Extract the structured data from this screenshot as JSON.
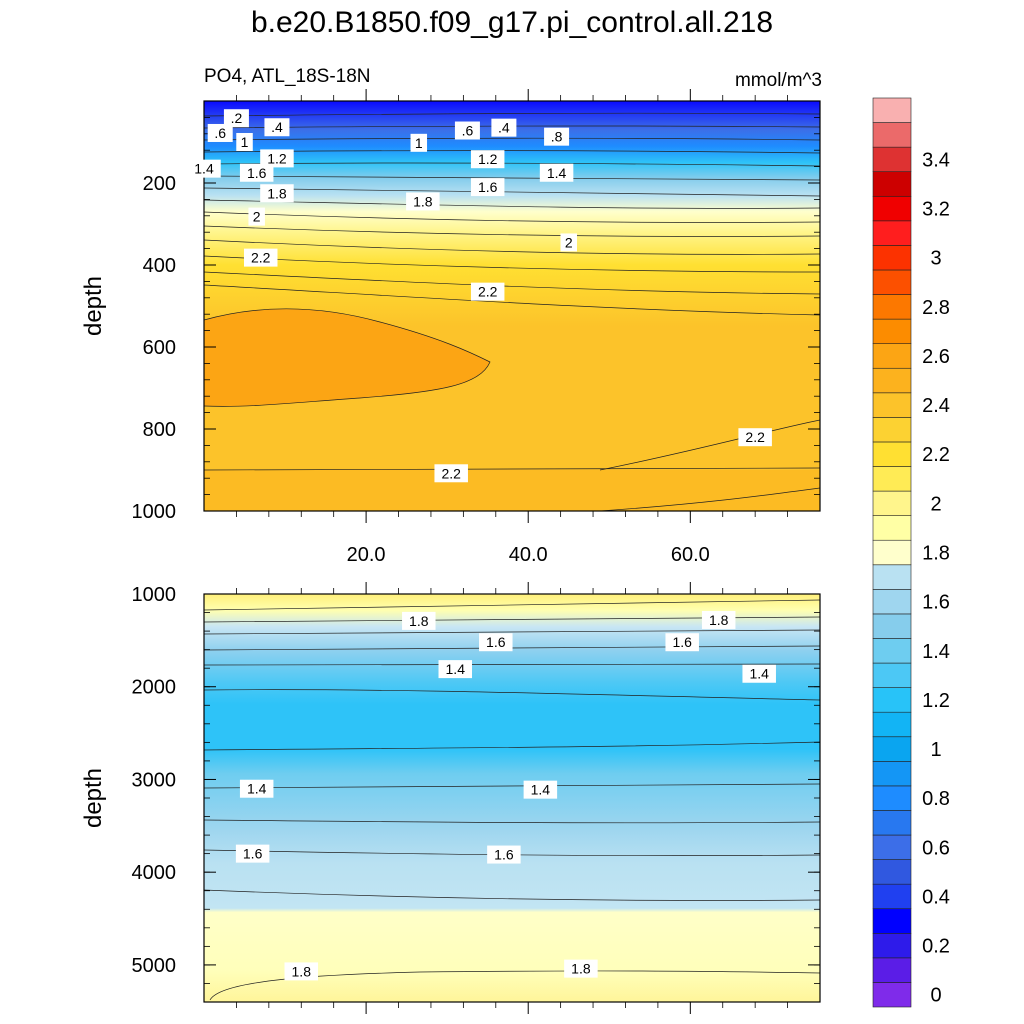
{
  "title": "b.e20.B1850.f09_g17.pi_control.all.218",
  "chart_data": [
    {
      "type": "contour",
      "panel": "upper",
      "variable_label": "PO4, ATL_18S-18N",
      "units_label": "mmol/m^3",
      "ylabel": "depth",
      "xlim": [
        0,
        76
      ],
      "ylim": [
        1000,
        0
      ],
      "xticks": [
        20,
        40,
        60
      ],
      "xtick_labels": [
        "20.0",
        "40.0",
        "60.0"
      ],
      "yticks": [
        200,
        400,
        600,
        800,
        1000
      ],
      "ytick_labels": [
        "200",
        "400",
        "600",
        "800",
        "1000"
      ],
      "contour_labels": [
        {
          "text": ".2",
          "x": 4.0,
          "y": 42
        },
        {
          "text": ".6",
          "x": 2.0,
          "y": 78
        },
        {
          "text": ".4",
          "x": 9.0,
          "y": 64
        },
        {
          "text": ".6",
          "x": 32.5,
          "y": 72
        },
        {
          "text": ".4",
          "x": 37.0,
          "y": 65
        },
        {
          "text": "1",
          "x": 5.0,
          "y": 100
        },
        {
          "text": "1",
          "x": 26.5,
          "y": 102
        },
        {
          "text": ".8",
          "x": 43.5,
          "y": 87
        },
        {
          "text": "1.4",
          "x": 0.0,
          "y": 165
        },
        {
          "text": "1.2",
          "x": 9.0,
          "y": 140
        },
        {
          "text": "1.2",
          "x": 35.0,
          "y": 142
        },
        {
          "text": "1.4",
          "x": 43.5,
          "y": 175
        },
        {
          "text": "1.6",
          "x": 6.5,
          "y": 175
        },
        {
          "text": "1.6",
          "x": 35.0,
          "y": 210
        },
        {
          "text": "1.8",
          "x": 9.0,
          "y": 225
        },
        {
          "text": "1.8",
          "x": 27.0,
          "y": 245
        },
        {
          "text": "2",
          "x": 6.5,
          "y": 282
        },
        {
          "text": "2",
          "x": 45.0,
          "y": 345
        },
        {
          "text": "2.2",
          "x": 7.0,
          "y": 382
        },
        {
          "text": "2.2",
          "x": 35.0,
          "y": 465
        },
        {
          "text": "2.2",
          "x": 68.0,
          "y": 820
        },
        {
          "text": "2.2",
          "x": 30.5,
          "y": 908
        }
      ]
    },
    {
      "type": "contour",
      "panel": "lower",
      "ylabel": "depth",
      "xlim": [
        0,
        76
      ],
      "ylim": [
        5400,
        1000
      ],
      "yticks": [
        1000,
        2000,
        3000,
        4000,
        5000
      ],
      "ytick_labels": [
        "1000",
        "2000",
        "3000",
        "4000",
        "5000"
      ],
      "contour_labels": [
        {
          "text": "1.8",
          "x": 26.5,
          "y": 1290
        },
        {
          "text": "1.8",
          "x": 63.5,
          "y": 1280
        },
        {
          "text": "1.6",
          "x": 36.0,
          "y": 1520
        },
        {
          "text": "1.6",
          "x": 59.0,
          "y": 1520
        },
        {
          "text": "1.4",
          "x": 31.0,
          "y": 1810
        },
        {
          "text": "1.4",
          "x": 68.5,
          "y": 1860
        },
        {
          "text": "1.4",
          "x": 6.5,
          "y": 3100
        },
        {
          "text": "1.4",
          "x": 41.5,
          "y": 3110
        },
        {
          "text": "1.6",
          "x": 6.0,
          "y": 3800
        },
        {
          "text": "1.6",
          "x": 37.0,
          "y": 3810
        },
        {
          "text": "1.8",
          "x": 12.0,
          "y": 5070
        },
        {
          "text": "1.8",
          "x": 46.5,
          "y": 5040
        }
      ]
    }
  ],
  "colorbar": {
    "labels": [
      "0",
      "0.2",
      "0.4",
      "0.6",
      "0.8",
      "1",
      "1.2",
      "1.4",
      "1.6",
      "1.8",
      "2",
      "2.2",
      "2.4",
      "2.6",
      "2.8",
      "3",
      "3.2",
      "3.4"
    ],
    "colors": [
      "#7f2bea",
      "#5b1de7",
      "#2e1bea",
      "#0000ff",
      "#2040f0",
      "#3058e0",
      "#3c6ee8",
      "#2878f0",
      "#1e8cff",
      "#1496f5",
      "#0aa5f0",
      "#12b4f5",
      "#28c3f8",
      "#4cc8f5",
      "#6ecdf0",
      "#86cdec",
      "#9fd6ef",
      "#b9e1f2",
      "#ffffcc",
      "#ffffa5",
      "#fff58c",
      "#ffeb55",
      "#ffe032",
      "#fcd232",
      "#fcc32a",
      "#fcb21e",
      "#fca514",
      "#fc8c00",
      "#fc7800",
      "#fc5000",
      "#fc3200",
      "#ff1e1e",
      "#f00000",
      "#cd0000",
      "#de3232",
      "#eb6a6a",
      "#f9b0b0"
    ]
  }
}
